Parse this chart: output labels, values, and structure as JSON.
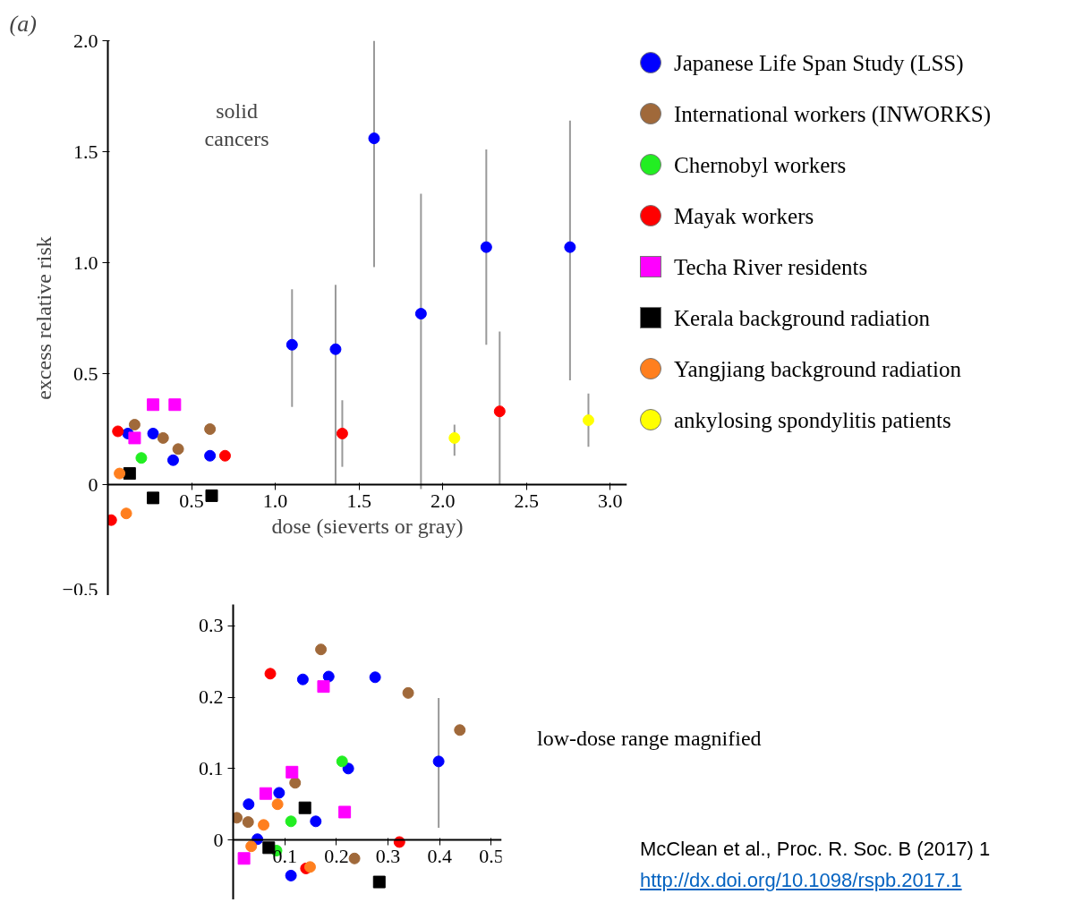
{
  "chart_data": [
    {
      "type": "scatter",
      "title": "(a)",
      "xlabel": "dose (sieverts or gray)",
      "ylabel": "excess relative risk",
      "annotations": [
        "solid cancers"
      ],
      "xlim": [
        0,
        3.1
      ],
      "ylim": [
        -0.5,
        2.0
      ],
      "xticks": [
        {
          "value": 0.5,
          "label": "0.5"
        },
        {
          "value": 1,
          "label": "1.0"
        },
        {
          "value": 1.5,
          "label": "1.5"
        },
        {
          "value": 2,
          "label": "2.0"
        },
        {
          "value": 2.5,
          "label": "2.5"
        },
        {
          "value": 3,
          "label": "3.0"
        }
      ],
      "yticks": [
        {
          "value": -0.5,
          "label": "−0.5"
        },
        0,
        {
          "value": 0.5,
          "label": "0.5"
        },
        {
          "value": 1,
          "label": "1.0"
        },
        {
          "value": 1.5,
          "label": "1.5"
        },
        {
          "value": 2,
          "label": "2.0"
        }
      ],
      "grid": false,
      "legend": "right",
      "series": [
        {
          "name": "Japanese Life Span Study (LSS)",
          "color": "#0000ff",
          "marker": "circle",
          "x": [
            0.12,
            0.27,
            0.39,
            0.61,
            1.1,
            1.36,
            1.59,
            1.87,
            2.26,
            2.76
          ],
          "values": [
            0.23,
            0.23,
            0.11,
            0.13,
            0.63,
            0.61,
            1.56,
            0.77,
            1.07,
            1.07
          ],
          "errors": [
            null,
            null,
            null,
            null,
            [
              0.35,
              0.88
            ],
            [
              0.0,
              0.9
            ],
            [
              0.98,
              2.0
            ],
            [
              -0.02,
              1.31
            ],
            [
              0.63,
              1.51
            ],
            [
              0.47,
              1.64
            ]
          ]
        },
        {
          "name": "International workers (INWORKS)",
          "color": "#a0693a",
          "marker": "circle",
          "x": [
            0.16,
            0.33,
            0.42,
            0.61
          ],
          "values": [
            0.27,
            0.21,
            0.16,
            0.25
          ]
        },
        {
          "name": "Chernobyl workers",
          "color": "#22ee22",
          "marker": "circle",
          "x": [
            0.2
          ],
          "values": [
            0.12
          ]
        },
        {
          "name": "Mayak workers",
          "color": "#ff0000",
          "marker": "circle",
          "x": [
            0.06,
            0.02,
            0.7,
            1.4,
            2.34
          ],
          "values": [
            0.24,
            -0.16,
            0.13,
            0.23,
            0.33
          ],
          "errors": [
            null,
            null,
            null,
            [
              0.08,
              0.38
            ],
            [
              0.0,
              0.69
            ]
          ]
        },
        {
          "name": "Techa River residents",
          "color": "#ff00ff",
          "marker": "square",
          "x": [
            0.27,
            0.4,
            0.16
          ],
          "values": [
            0.36,
            0.36,
            0.21
          ]
        },
        {
          "name": "Kerala background radiation",
          "color": "#000000",
          "marker": "square",
          "x": [
            0.27,
            0.62,
            0.13
          ],
          "values": [
            -0.06,
            -0.05,
            0.05
          ]
        },
        {
          "name": "Yangjiang background radiation",
          "color": "#ff7f1e",
          "marker": "circle",
          "x": [
            0.11,
            0.07
          ],
          "values": [
            -0.13,
            0.05
          ]
        },
        {
          "name": "ankylosing spondylitis patients",
          "color": "#ffff00",
          "marker": "circle",
          "x": [
            2.07,
            2.87
          ],
          "values": [
            0.21,
            0.29
          ],
          "errors": [
            [
              0.13,
              0.27
            ],
            [
              0.17,
              0.41
            ]
          ]
        }
      ]
    },
    {
      "type": "scatter",
      "annotations": [
        "low-dose range magnified",
        "McClean et al., Proc. R. Soc. B (2017) 1",
        "http://dx.doi.org/10.1098/rspb.2017.1"
      ],
      "xlim": [
        0,
        0.52
      ],
      "ylim": [
        -0.084,
        0.33
      ],
      "xticks": [
        0.1,
        0.2,
        0.3,
        0.4,
        0.5
      ],
      "yticks": [
        0,
        0.1,
        0.2,
        0.3
      ],
      "grid": false,
      "series": [
        {
          "color": "#0000ff",
          "marker": "circle",
          "x": [
            0.135,
            0.185,
            0.275,
            0.398,
            0.223,
            0.089,
            0.03,
            0.16,
            0.047,
            0.112
          ],
          "values": [
            0.225,
            0.229,
            0.228,
            0.11,
            0.1,
            0.066,
            0.05,
            0.026,
            0.001,
            -0.05
          ],
          "errors": [
            null,
            null,
            null,
            [
              0.017,
              0.199
            ],
            null,
            null,
            null,
            null,
            null,
            null
          ]
        },
        {
          "color": "#a0693a",
          "marker": "circle",
          "x": [
            0.17,
            0.339,
            0.439,
            0.12,
            0.029,
            0.007,
            0.235
          ],
          "values": [
            0.267,
            0.206,
            0.154,
            0.08,
            0.025,
            0.031,
            -0.026
          ]
        },
        {
          "color": "#ff0000",
          "marker": "circle",
          "x": [
            0.072,
            0.322,
            0.141
          ],
          "values": [
            0.233,
            -0.003,
            -0.04
          ]
        },
        {
          "color": "#22ee22",
          "marker": "circle",
          "x": [
            0.211,
            0.112,
            0.084
          ],
          "values": [
            0.11,
            0.026,
            -0.015
          ]
        },
        {
          "color": "#ff00ff",
          "marker": "square",
          "x": [
            0.175,
            0.114,
            0.063,
            0.216,
            0.021
          ],
          "values": [
            0.215,
            0.095,
            0.065,
            0.039,
            -0.026
          ]
        },
        {
          "color": "#000000",
          "marker": "square",
          "x": [
            0.139,
            0.069,
            0.283
          ],
          "values": [
            0.045,
            -0.011,
            -0.059
          ]
        },
        {
          "color": "#ff7f1e",
          "marker": "circle",
          "x": [
            0.086,
            0.059,
            0.035,
            0.149
          ],
          "values": [
            0.05,
            0.021,
            -0.009,
            -0.038
          ]
        }
      ]
    }
  ]
}
